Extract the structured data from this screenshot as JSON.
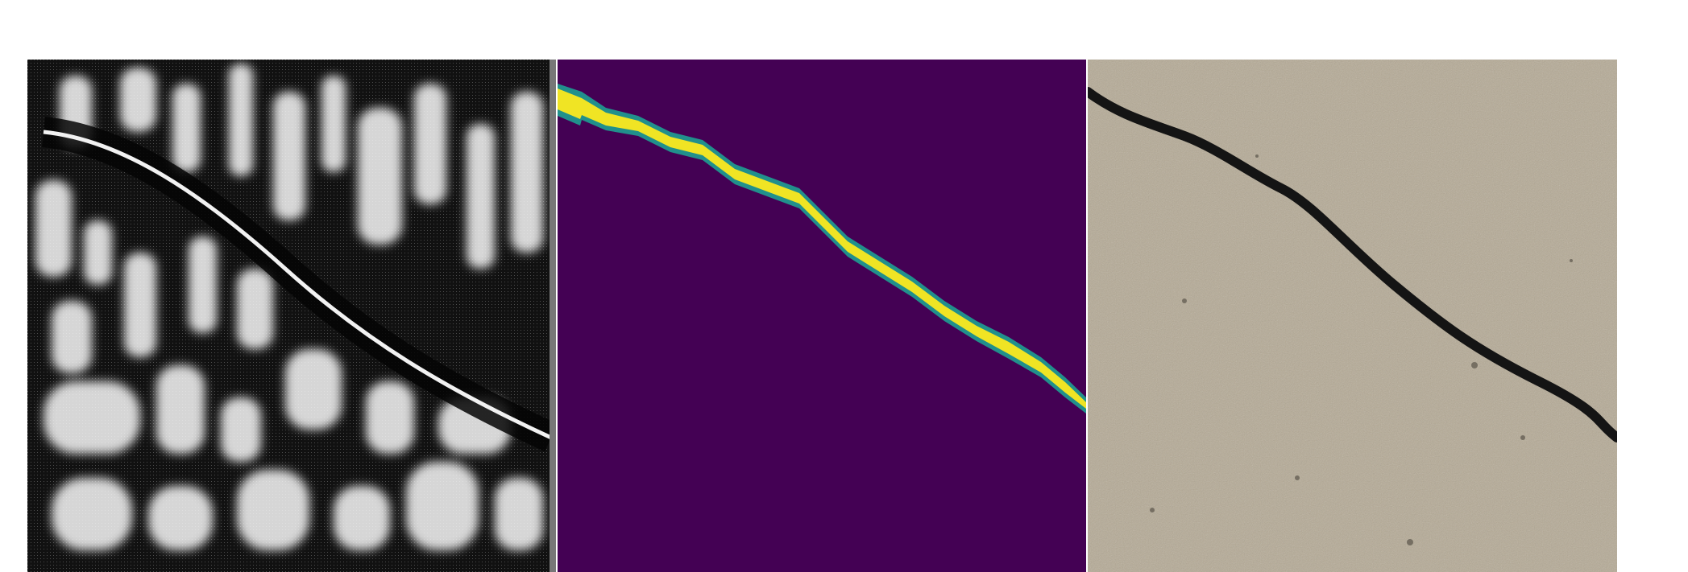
{
  "figure": {
    "panels": [
      {
        "id": "saliency",
        "kind": "grayscale feature map",
        "colors": {
          "dark": "#0a0a0a",
          "light": "#d9d9d9"
        }
      },
      {
        "id": "segmentation",
        "kind": "crack segmentation mask",
        "colors": {
          "background": "#440154",
          "crack": "#f0e424",
          "edge": "#21908c"
        }
      },
      {
        "id": "photo",
        "kind": "concrete surface photograph",
        "colors": {
          "surface": "#b5aa95",
          "crack": "#141414"
        }
      }
    ]
  }
}
